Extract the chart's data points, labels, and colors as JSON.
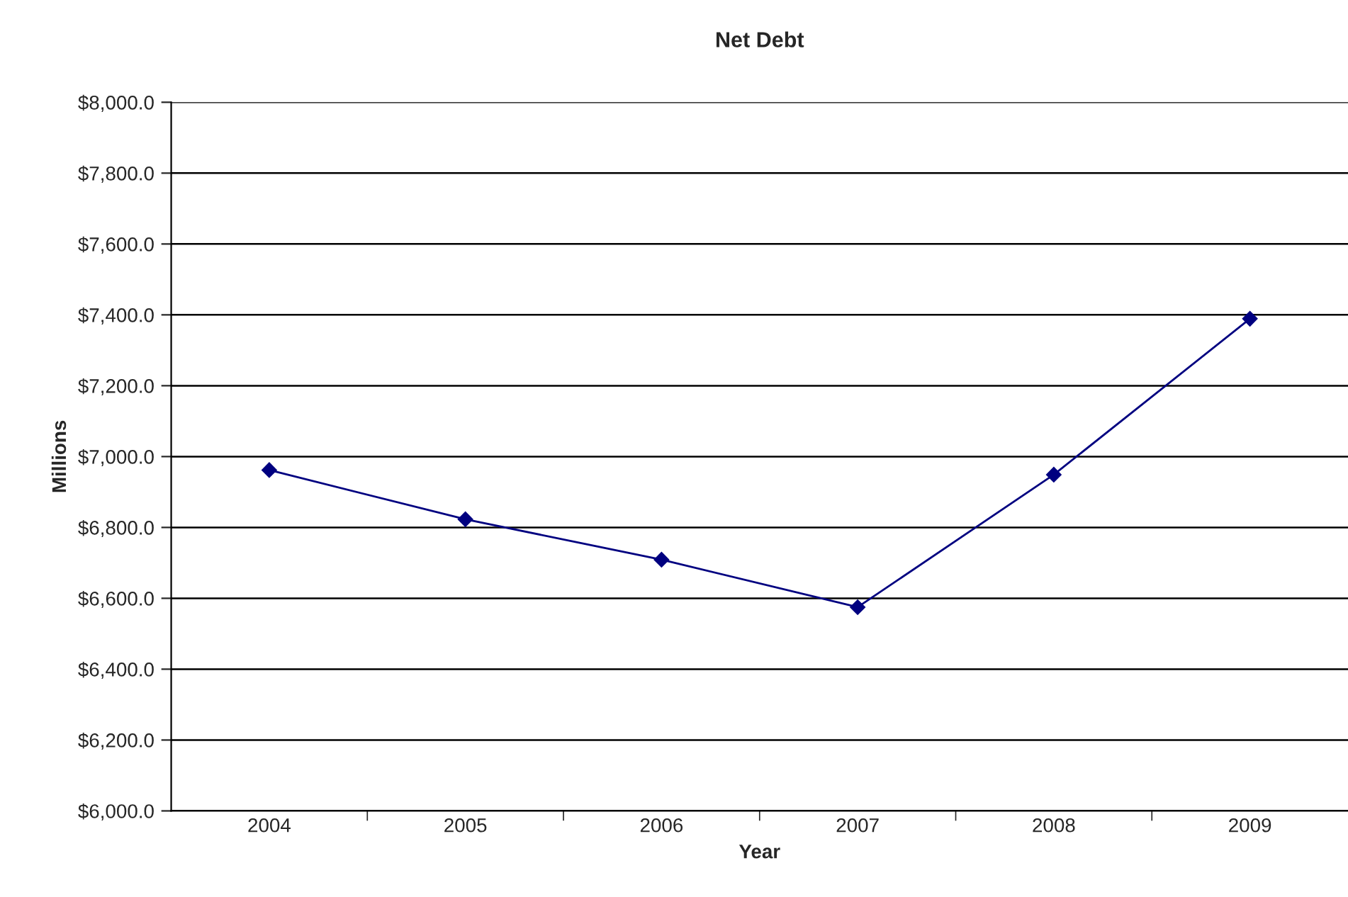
{
  "chart_data": {
    "type": "line",
    "title": "Net Debt",
    "xlabel": "Year",
    "ylabel": "Millions",
    "categories": [
      "2004",
      "2005",
      "2006",
      "2007",
      "2008",
      "2009"
    ],
    "series": [
      {
        "color": "#000080",
        "values": [
          6962,
          6823,
          6709,
          6575,
          6949,
          7389
        ]
      }
    ],
    "ylim": [
      6000,
      8000
    ],
    "yticks": [
      {
        "value": 6000,
        "label": "$6,000.0"
      },
      {
        "value": 6200,
        "label": "$6,200.0"
      },
      {
        "value": 6400,
        "label": "$6,400.0"
      },
      {
        "value": 6600,
        "label": "$6,600.0"
      },
      {
        "value": 6800,
        "label": "$6,800.0"
      },
      {
        "value": 7000,
        "label": "$7,000.0"
      },
      {
        "value": 7200,
        "label": "$7,200.0"
      },
      {
        "value": 7400,
        "label": "$7,400.0"
      },
      {
        "value": 7600,
        "label": "$7,600.0"
      },
      {
        "value": 7800,
        "label": "$7,800.0"
      },
      {
        "value": 8000,
        "label": "$8,000.0"
      }
    ],
    "grid": "y",
    "marker": "diamond",
    "line_style": "solid",
    "legend": false
  }
}
